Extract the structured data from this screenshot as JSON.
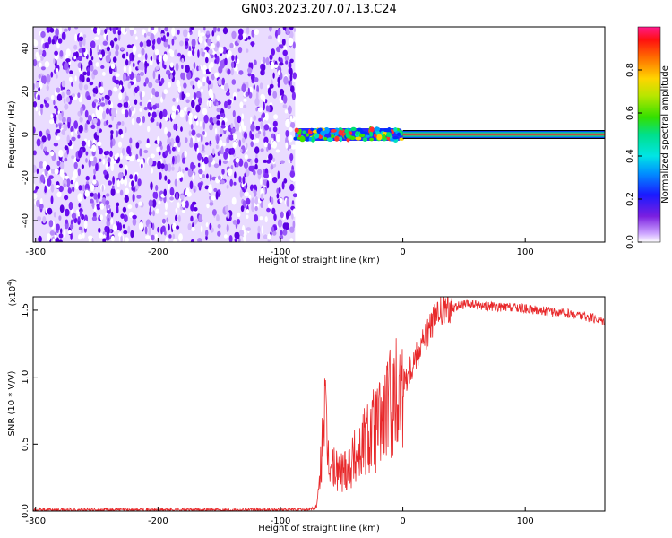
{
  "title": "GN03.2023.207.07.13.C24",
  "chart_data": [
    {
      "type": "heatmap",
      "xlabel": "Height of straight line (km)",
      "ylabel": "Frequency (Hz)",
      "xlim": [
        -302,
        165
      ],
      "ylim": [
        -50,
        50
      ],
      "xticks": [
        -300,
        -200,
        -100,
        0,
        100
      ],
      "yticks": [
        -40,
        -20,
        0,
        20,
        40
      ],
      "colorbar": {
        "label": "Normalized spectral amplitude",
        "range": [
          0.0,
          1.0
        ],
        "ticks": [
          "0.0",
          "0.2",
          "0.4",
          "0.6",
          "0.8"
        ]
      },
      "regions": [
        {
          "x_range": [
            -302,
            -88
          ],
          "y_range": [
            -50,
            50
          ],
          "description": "broadband noise",
          "amplitude": 0.1
        },
        {
          "x_range": [
            -88,
            0
          ],
          "y_range": [
            -3,
            3
          ],
          "description": "emerging tone",
          "amplitude": 0.4
        },
        {
          "x_range": [
            0,
            165
          ],
          "y_range": [
            -1,
            1
          ],
          "description": "stable tone",
          "amplitude": 0.9
        }
      ]
    },
    {
      "type": "line",
      "xlabel": "Height of straight line (km)",
      "ylabel": "SNR (10 * V/V)",
      "y_multiplier": "(x10^4)",
      "xlim": [
        -302,
        165
      ],
      "ylim": [
        0,
        1.6
      ],
      "xticks": [
        -300,
        -200,
        -100,
        0,
        100
      ],
      "yticks": [
        "0.0",
        "0.5",
        "1.0",
        "1.5"
      ],
      "series": [
        {
          "color": "#e8282a",
          "x": [
            -302,
            -280,
            -250,
            -200,
            -150,
            -100,
            -80,
            -72,
            -70,
            -68,
            -66,
            -64,
            -62,
            -60,
            -55,
            -50,
            -45,
            -40,
            -35,
            -30,
            -25,
            -20,
            -15,
            -10,
            -5,
            0,
            5,
            10,
            15,
            20,
            25,
            30,
            40,
            50,
            60,
            70,
            80,
            90,
            100,
            110,
            120,
            130,
            140,
            150,
            160,
            165
          ],
          "y": [
            0.01,
            0.01,
            0.01,
            0.01,
            0.01,
            0.01,
            0.01,
            0.02,
            0.05,
            0.2,
            0.5,
            0.8,
            0.45,
            0.35,
            0.3,
            0.3,
            0.35,
            0.4,
            0.45,
            0.55,
            0.6,
            0.65,
            0.72,
            0.8,
            0.88,
            0.95,
            1.05,
            1.15,
            1.25,
            1.33,
            1.42,
            1.48,
            1.52,
            1.54,
            1.54,
            1.53,
            1.52,
            1.52,
            1.51,
            1.5,
            1.49,
            1.48,
            1.47,
            1.45,
            1.43,
            1.42
          ]
        }
      ]
    }
  ]
}
